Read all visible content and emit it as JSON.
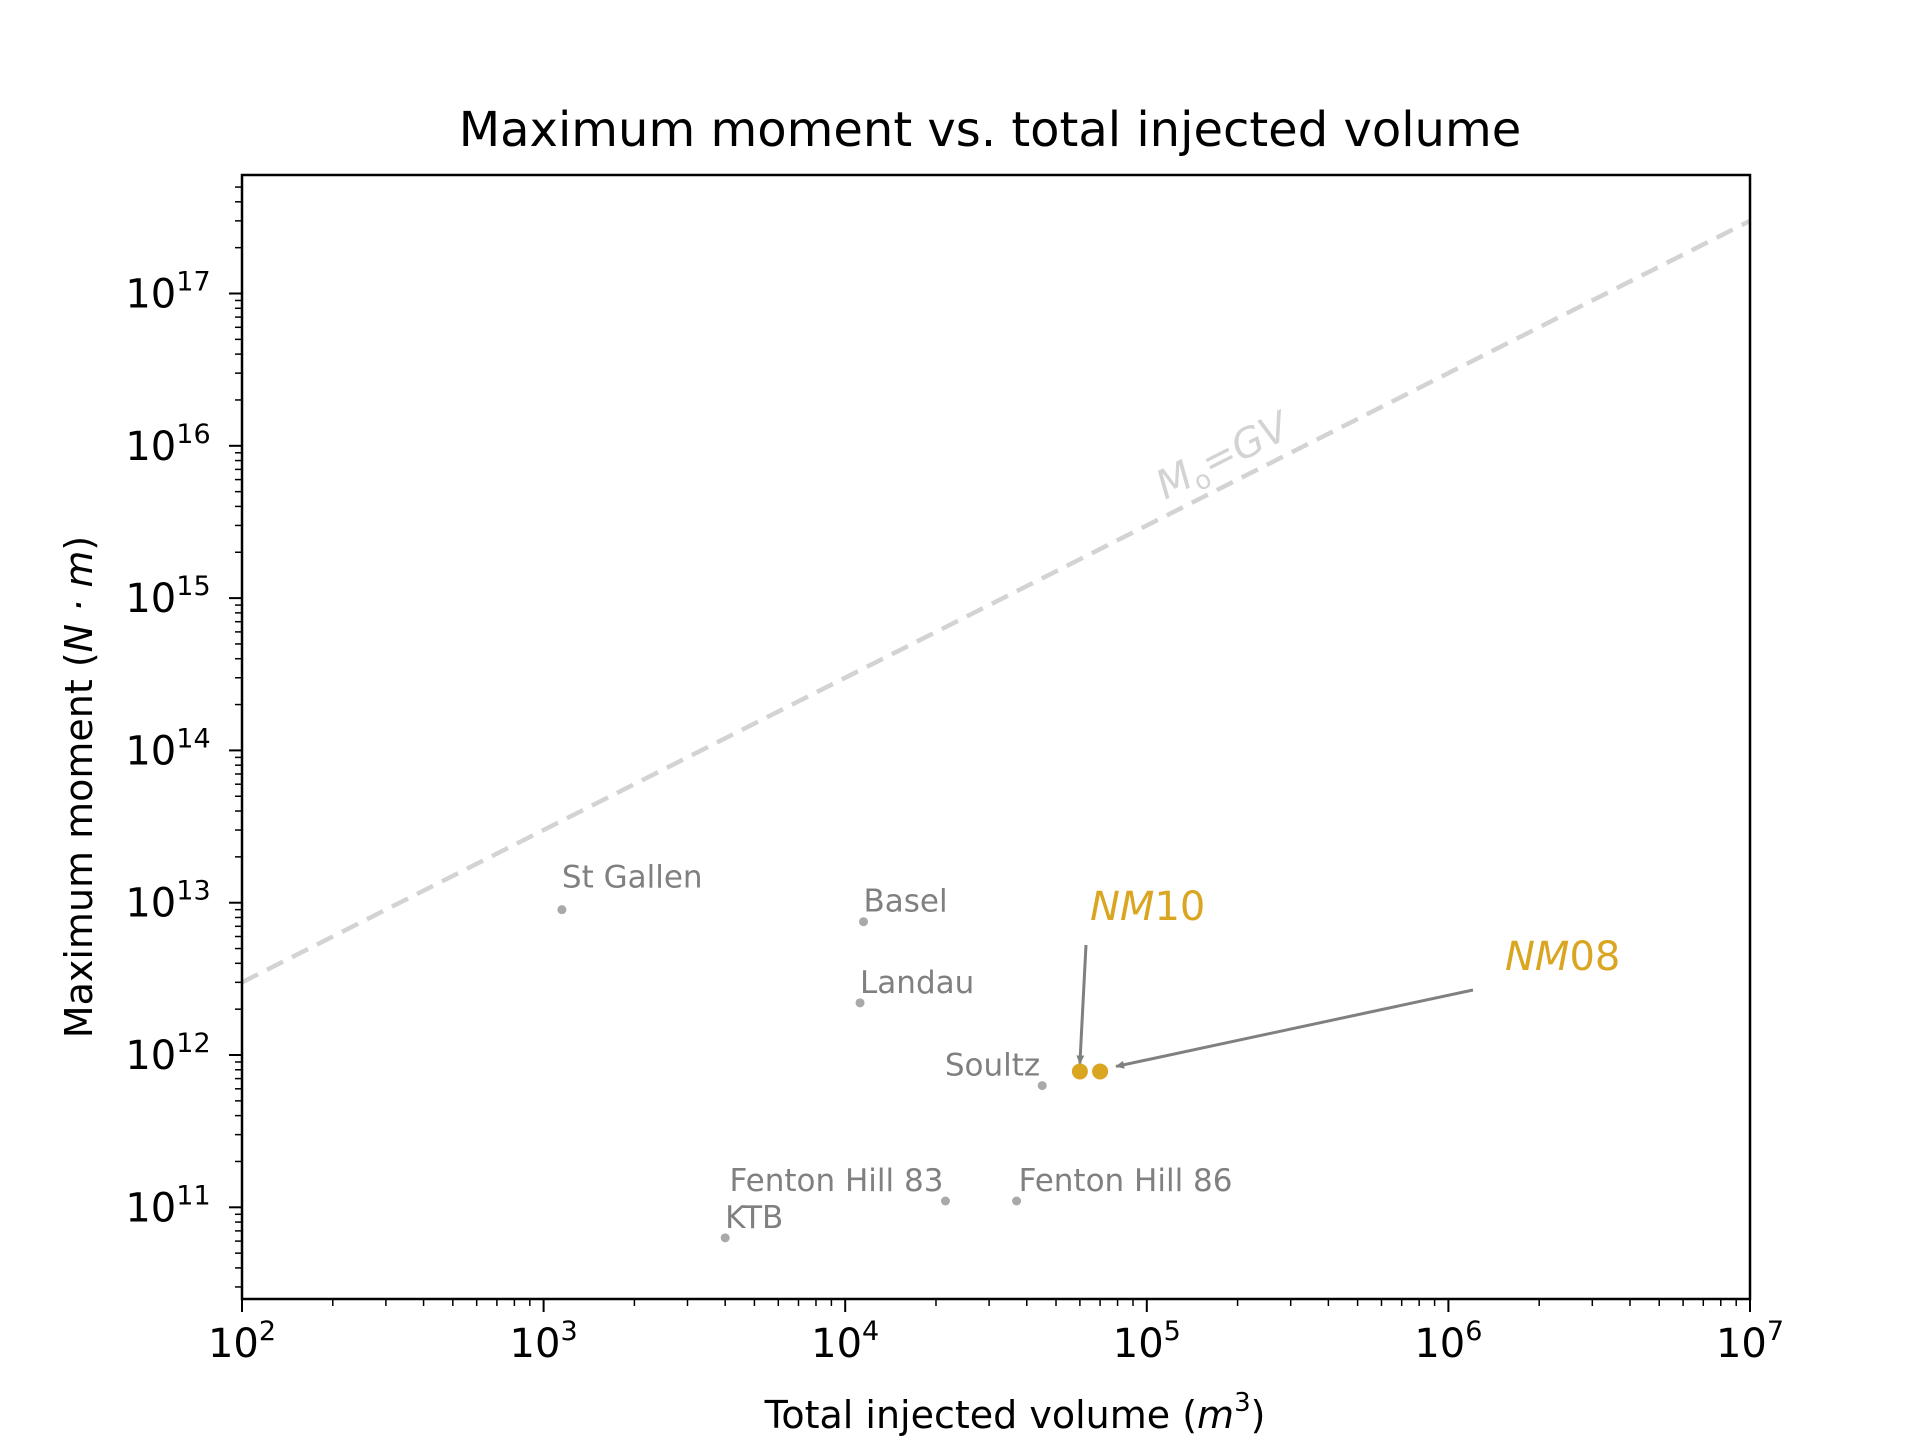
{
  "chart_data": {
    "type": "scatter",
    "title": "Maximum moment vs. total injected volume",
    "xlabel_text": "Total injected volume (",
    "xlabel_unit": "m",
    "xlabel_exp": "3",
    "xlabel_close": ")",
    "ylabel_text": "Maximum moment (",
    "ylabel_unit": "N · m",
    "ylabel_close": ")",
    "x_scale": "log",
    "y_scale": "log",
    "xlim": [
      100,
      10000000
    ],
    "ylim": [
      25000000000,
      600000000000000000
    ],
    "x_ticks": [
      {
        "base": "10",
        "exp": "2",
        "value": 100
      },
      {
        "base": "10",
        "exp": "3",
        "value": 1000
      },
      {
        "base": "10",
        "exp": "4",
        "value": 10000
      },
      {
        "base": "10",
        "exp": "5",
        "value": 100000
      },
      {
        "base": "10",
        "exp": "6",
        "value": 1000000
      },
      {
        "base": "10",
        "exp": "7",
        "value": 10000000
      }
    ],
    "y_ticks": [
      {
        "base": "10",
        "exp": "11",
        "value": 100000000000
      },
      {
        "base": "10",
        "exp": "12",
        "value": 1000000000000
      },
      {
        "base": "10",
        "exp": "13",
        "value": 10000000000000
      },
      {
        "base": "10",
        "exp": "14",
        "value": 100000000000000
      },
      {
        "base": "10",
        "exp": "15",
        "value": 1000000000000000
      },
      {
        "base": "10",
        "exp": "16",
        "value": 10000000000000000
      },
      {
        "base": "10",
        "exp": "17",
        "value": 100000000000000000
      }
    ],
    "grid": false,
    "reference_line": {
      "label_main": "M",
      "label_sub": "o",
      "label_rest": "=GV",
      "G": 30000000000,
      "style": "dashed",
      "color": "#d3d3d3"
    },
    "sites": [
      {
        "name": "St Gallen",
        "x": 1150,
        "y": 9000000000000
      },
      {
        "name": "Basel",
        "x": 11500,
        "y": 7500000000000
      },
      {
        "name": "Landau",
        "x": 11200,
        "y": 2200000000000
      },
      {
        "name": "Soultz",
        "x": 45000,
        "y": 630000000000
      },
      {
        "name": "Fenton Hill 83",
        "x": 21500,
        "y": 110000000000
      },
      {
        "name": "Fenton Hill 86",
        "x": 37000,
        "y": 110000000000
      },
      {
        "name": "KTB",
        "x": 4000,
        "y": 63000000000
      }
    ],
    "highlights": [
      {
        "name_prefix": "NM",
        "name_num": "10",
        "x": 60000,
        "y": 780000000000
      },
      {
        "name_prefix": "NM",
        "name_num": "08",
        "x": 70000,
        "y": 780000000000
      }
    ],
    "colors": {
      "sites": "#808080",
      "site_markers": "#a9a9a9",
      "highlight": "#daa520",
      "arrow": "#808080",
      "reference_line": "#d3d3d3"
    }
  }
}
